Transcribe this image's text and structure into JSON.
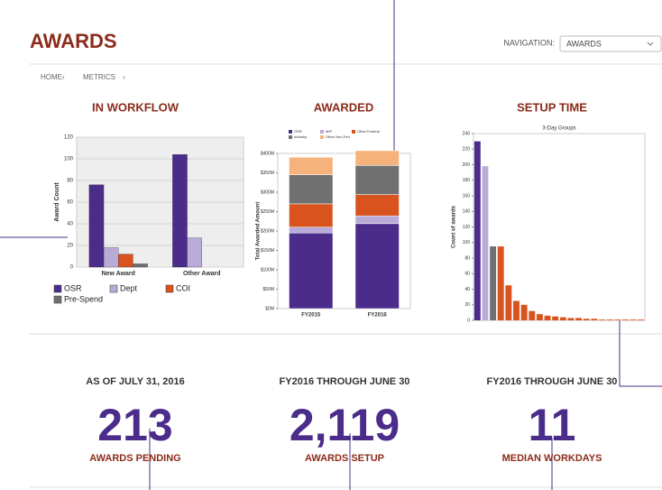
{
  "header": {
    "title": "AWARDS",
    "nav_label": "NAVIGATION:",
    "nav_value": "AWARDS"
  },
  "breadcrumbs": [
    "HOME",
    "METRICS"
  ],
  "sections": [
    "IN WORKFLOW",
    "AWARDED",
    "SETUP TIME"
  ],
  "chart_data": [
    {
      "type": "bar",
      "categories": [
        "New Award",
        "Other Award"
      ],
      "ylabel": "Award Count",
      "series": [
        {
          "name": "OSR",
          "color": "#4b2c8a",
          "values": [
            76,
            104
          ]
        },
        {
          "name": "Dept",
          "color": "#b9aad8",
          "values": [
            18,
            27
          ]
        },
        {
          "name": "COI",
          "color": "#d9531e",
          "values": [
            12,
            0
          ]
        },
        {
          "name": "Pre-Spend",
          "color": "#707070",
          "values": [
            3,
            0
          ]
        }
      ],
      "ylim": [
        0,
        120
      ],
      "yticks": [
        0,
        20,
        40,
        60,
        80,
        100,
        120
      ],
      "grid": true,
      "legend": "bottom"
    },
    {
      "type": "bar",
      "stacked": true,
      "categories": [
        "FY2015",
        "FY2016"
      ],
      "ylabel": "Total Awarded Amount",
      "series": [
        {
          "name": "OSR",
          "color": "#4b2c8a",
          "values": [
            195,
            219
          ]
        },
        {
          "name": "MIP",
          "color": "#b9aad8",
          "values": [
            15,
            20
          ]
        },
        {
          "name": "Other Federal",
          "color": "#d9531e",
          "values": [
            60,
            55
          ]
        },
        {
          "name": "Industry",
          "color": "#707070",
          "values": [
            75,
            75
          ]
        },
        {
          "name": "Other Non-Fed",
          "color": "#f5b27a",
          "values": [
            45,
            38
          ]
        }
      ],
      "ylim": [
        0,
        400
      ],
      "yticks": [
        {
          "value": 0,
          "label": "$0M"
        },
        {
          "value": 50,
          "label": "$50M"
        },
        {
          "value": 100,
          "label": "$100M"
        },
        {
          "value": 150,
          "label": "$150M"
        },
        {
          "value": 200,
          "label": "$200M"
        },
        {
          "value": 250,
          "label": "$250M"
        },
        {
          "value": 300,
          "label": "$300M"
        },
        {
          "value": 350,
          "label": "$350M"
        },
        {
          "value": 400,
          "label": "$400M"
        }
      ],
      "grid": false,
      "legend": "top"
    },
    {
      "type": "bar",
      "title": "3-Day Groups",
      "ylabel": "Count of awards",
      "categories": [
        null,
        null,
        null,
        null,
        null,
        null,
        null,
        null,
        null,
        null,
        null,
        null,
        null,
        null,
        null,
        null,
        null,
        null,
        null,
        null,
        null,
        null
      ],
      "values": [
        230,
        198,
        95,
        95,
        45,
        25,
        20,
        12,
        8,
        6,
        5,
        4,
        3,
        3,
        2,
        2,
        1,
        1,
        1,
        1,
        1,
        1
      ],
      "colors": [
        "#4b2c8a",
        "#b9aad8",
        "#707070",
        "#d9531e",
        "#d9531e",
        "#d9531e",
        "#d9531e",
        "#d9531e",
        "#d9531e",
        "#d9531e",
        "#d9531e",
        "#d9531e",
        "#d9531e",
        "#d9531e",
        "#d9531e",
        "#d9531e",
        "#d9531e",
        "#d9531e",
        "#d9531e",
        "#d9531e",
        "#d9531e",
        "#d9531e"
      ],
      "ylim": [
        0,
        240
      ],
      "yticks": [
        0,
        20,
        40,
        60,
        80,
        100,
        120,
        140,
        160,
        180,
        200,
        220,
        240
      ],
      "grid": false
    }
  ],
  "stats": [
    {
      "caption": "AS OF JULY 31, 2016",
      "value": "213",
      "label": "AWARDS PENDING"
    },
    {
      "caption": "FY2016 THROUGH JUNE 30",
      "value": "2,119",
      "label": "AWARDS SETUP"
    },
    {
      "caption": "FY2016 THROUGH JUNE 30",
      "value": "11",
      "label": "MEDIAN WORKDAYS"
    }
  ]
}
